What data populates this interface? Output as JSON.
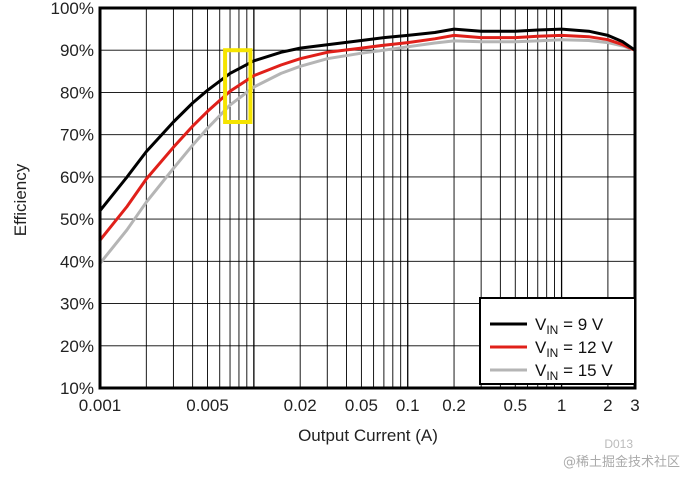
{
  "chart_data": {
    "type": "line",
    "title": "",
    "xlabel": "Output Current (A)",
    "ylabel": "Efficiency",
    "xscale": "log",
    "xlim": [
      0.001,
      3
    ],
    "ylim": [
      10,
      100
    ],
    "grid": true,
    "x_ticks": [
      {
        "value": 0.001,
        "label": "0.001"
      },
      {
        "value": 0.005,
        "label": "0.005"
      },
      {
        "value": 0.02,
        "label": "0.02"
      },
      {
        "value": 0.05,
        "label": "0.05"
      },
      {
        "value": 0.1,
        "label": "0.1"
      },
      {
        "value": 0.2,
        "label": "0.2"
      },
      {
        "value": 0.5,
        "label": "0.5"
      },
      {
        "value": 1,
        "label": "1"
      },
      {
        "value": 2,
        "label": "2"
      },
      {
        "value": 3,
        "label": "3"
      }
    ],
    "y_ticks": [
      {
        "value": 10,
        "label": "10%"
      },
      {
        "value": 20,
        "label": "20%"
      },
      {
        "value": 30,
        "label": "30%"
      },
      {
        "value": 40,
        "label": "40%"
      },
      {
        "value": 50,
        "label": "50%"
      },
      {
        "value": 60,
        "label": "60%"
      },
      {
        "value": 70,
        "label": "70%"
      },
      {
        "value": 80,
        "label": "80%"
      },
      {
        "value": 90,
        "label": "90%"
      },
      {
        "value": 100,
        "label": "100%"
      }
    ],
    "series": [
      {
        "name": "VIN = 9 V",
        "label_main": "V",
        "label_sub": "IN",
        "label_rest": " = 9 V",
        "color": "#000000",
        "x": [
          0.001,
          0.0015,
          0.002,
          0.003,
          0.004,
          0.005,
          0.007,
          0.01,
          0.015,
          0.02,
          0.03,
          0.05,
          0.07,
          0.1,
          0.15,
          0.2,
          0.3,
          0.5,
          0.7,
          1,
          1.5,
          2,
          2.5,
          3
        ],
        "y": [
          52,
          60,
          66,
          73,
          77.5,
          80.5,
          84.5,
          87.5,
          89.5,
          90.5,
          91.3,
          92.3,
          93,
          93.5,
          94.2,
          95,
          94.5,
          94.5,
          94.8,
          95,
          94.5,
          93.5,
          92,
          90
        ]
      },
      {
        "name": "VIN = 12 V",
        "label_main": "V",
        "label_sub": "IN",
        "label_rest": " = 12 V",
        "color": "#e0201a",
        "x": [
          0.001,
          0.0015,
          0.002,
          0.003,
          0.004,
          0.005,
          0.007,
          0.01,
          0.015,
          0.02,
          0.03,
          0.05,
          0.07,
          0.1,
          0.15,
          0.2,
          0.3,
          0.5,
          0.7,
          1,
          1.5,
          2,
          2.5,
          3
        ],
        "y": [
          45,
          53,
          59.5,
          67,
          72,
          75.5,
          80.3,
          84,
          86.5,
          88,
          89.5,
          90.5,
          91.2,
          91.8,
          92.7,
          93.5,
          93,
          93,
          93.3,
          93.5,
          93.2,
          92.5,
          91.3,
          90
        ]
      },
      {
        "name": "VIN = 15 V",
        "label_main": "V",
        "label_sub": "IN",
        "label_rest": " = 15 V",
        "color": "#b5b5b5",
        "x": [
          0.001,
          0.0015,
          0.002,
          0.003,
          0.004,
          0.005,
          0.007,
          0.01,
          0.015,
          0.02,
          0.03,
          0.05,
          0.07,
          0.1,
          0.15,
          0.2,
          0.3,
          0.5,
          0.7,
          1,
          1.5,
          2,
          2.5,
          3
        ],
        "y": [
          39.5,
          47.5,
          54,
          62,
          67.5,
          71.5,
          77,
          81.3,
          84.5,
          86.2,
          88,
          89.3,
          90,
          90.8,
          91.7,
          92.2,
          92,
          92,
          92.2,
          92.5,
          92.3,
          91.8,
          91,
          90
        ]
      }
    ],
    "legend": {
      "position": "bottom-right"
    },
    "annotation": {
      "type": "highlight-box",
      "color": "#f5e400",
      "x_range": [
        0.0065,
        0.0095
      ],
      "y_range": [
        73,
        90
      ]
    },
    "figure_id": "D013"
  },
  "watermark": "@稀土掘金技术社区"
}
